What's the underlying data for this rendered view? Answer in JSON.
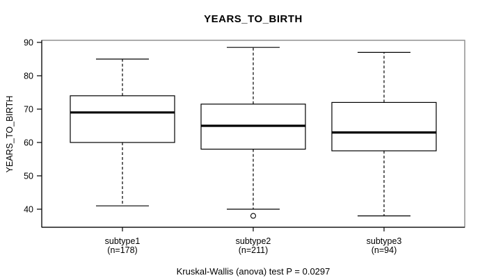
{
  "figure": {
    "title": "YEARS_TO_BIRTH",
    "y_axis_label": "YEARS_TO_BIRTH",
    "caption": "Kruskal-Wallis (anova) test P = 0.0297"
  },
  "chart_data": {
    "type": "boxplot",
    "title": "YEARS_TO_BIRTH",
    "ylabel": "YEARS_TO_BIRTH",
    "xlabel": "",
    "yticks": [
      40,
      50,
      60,
      70,
      80,
      90
    ],
    "ylim": [
      34.6,
      90.6
    ],
    "grid": false,
    "annotation": "Kruskal-Wallis (anova) test P = 0.0297",
    "groups": [
      {
        "label": "subtype1",
        "n_label": "(n=178)",
        "n": 178,
        "whisker_low": 41,
        "q1": 60,
        "median": 69,
        "q3": 74,
        "whisker_high": 85,
        "outliers": []
      },
      {
        "label": "subtype2",
        "n_label": "(n=211)",
        "n": 211,
        "whisker_low": 40,
        "q1": 58,
        "median": 65,
        "q3": 71.5,
        "whisker_high": 88.5,
        "outliers": [
          38
        ]
      },
      {
        "label": "subtype3",
        "n_label": "(n=94)",
        "n": 94,
        "whisker_low": 38,
        "q1": 57.5,
        "median": 63,
        "q3": 72,
        "whisker_high": 87,
        "outliers": []
      }
    ],
    "colors": {
      "line": "#000000",
      "frame": "#808080",
      "box_fill": "#ffffff"
    }
  }
}
